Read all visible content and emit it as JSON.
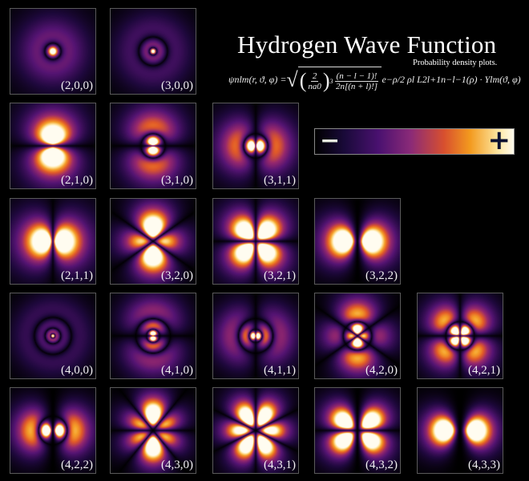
{
  "title": "Hydrogen Wave Function",
  "subtitle": "Probability density plots.",
  "formula": {
    "lhs": "ψnlm(r, ϑ, φ) =",
    "frac1_num": "2",
    "frac1_den": "na0",
    "power": "3",
    "frac2_num": "(n − l − 1)!",
    "frac2_den": "2n[(n + l)!]",
    "rhs": "e−ρ/2 ρl L2l+1n−l−1(ρ) · Ylm(ϑ, φ)"
  },
  "colorbar": {
    "minus_label": "−",
    "plus_label": "+",
    "colors": [
      "#000000",
      "#4a1170",
      "#d8502e",
      "#f39a1e",
      "#fffbee"
    ]
  },
  "tiles": [
    {
      "label": "(2,0,0)",
      "n": 2,
      "l": 0,
      "m": 0
    },
    {
      "label": "(3,0,0)",
      "n": 3,
      "l": 0,
      "m": 0
    },
    {
      "label": "(2,1,0)",
      "n": 2,
      "l": 1,
      "m": 0
    },
    {
      "label": "(3,1,0)",
      "n": 3,
      "l": 1,
      "m": 0
    },
    {
      "label": "(3,1,1)",
      "n": 3,
      "l": 1,
      "m": 1
    },
    {
      "label": "(2,1,1)",
      "n": 2,
      "l": 1,
      "m": 1
    },
    {
      "label": "(3,2,0)",
      "n": 3,
      "l": 2,
      "m": 0
    },
    {
      "label": "(3,2,1)",
      "n": 3,
      "l": 2,
      "m": 1
    },
    {
      "label": "(3,2,2)",
      "n": 3,
      "l": 2,
      "m": 2
    },
    {
      "label": "(4,0,0)",
      "n": 4,
      "l": 0,
      "m": 0
    },
    {
      "label": "(4,1,0)",
      "n": 4,
      "l": 1,
      "m": 0
    },
    {
      "label": "(4,1,1)",
      "n": 4,
      "l": 1,
      "m": 1
    },
    {
      "label": "(4,2,0)",
      "n": 4,
      "l": 2,
      "m": 0
    },
    {
      "label": "(4,2,1)",
      "n": 4,
      "l": 2,
      "m": 1
    },
    {
      "label": "(4,2,2)",
      "n": 4,
      "l": 2,
      "m": 2
    },
    {
      "label": "(4,3,0)",
      "n": 4,
      "l": 3,
      "m": 0
    },
    {
      "label": "(4,3,1)",
      "n": 4,
      "l": 3,
      "m": 1
    },
    {
      "label": "(4,3,2)",
      "n": 4,
      "l": 3,
      "m": 2
    },
    {
      "label": "(4,3,3)",
      "n": 4,
      "l": 3,
      "m": 3
    }
  ]
}
